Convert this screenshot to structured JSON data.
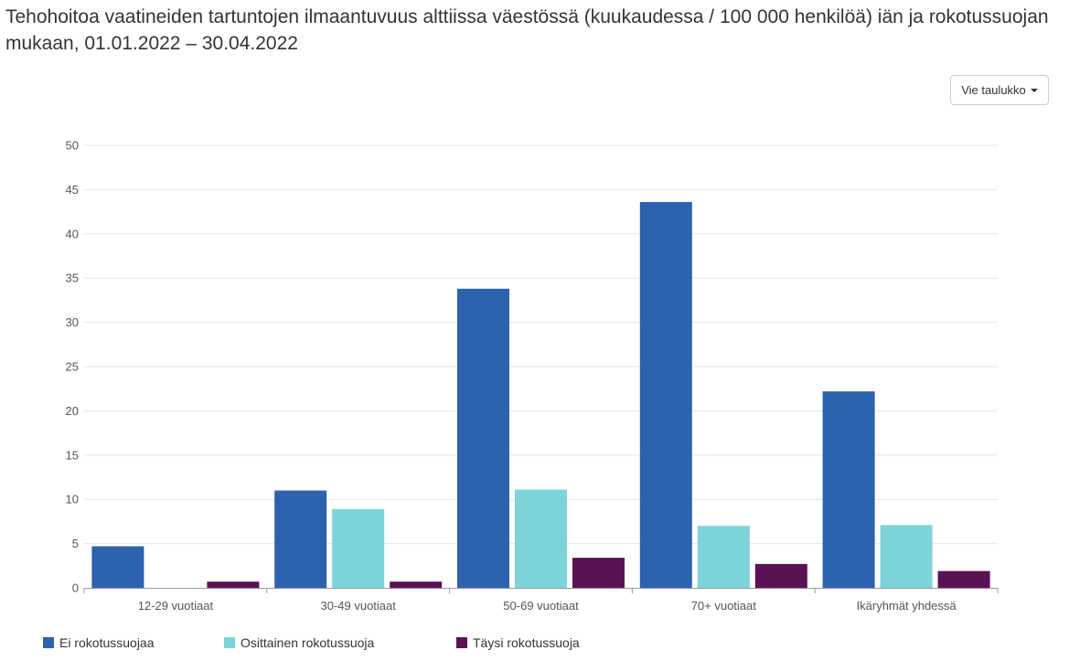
{
  "title": "Tehohoitoa vaatineiden tartuntojen ilmaantuvuus alttiissa väestössä (kuukaudessa / 100 000 henkilöä) iän ja rokotussuojan mukaan, 01.01.2022 – 30.04.2022",
  "export_button": {
    "label": "Vie taulukko",
    "icon": "caret-down-icon"
  },
  "chart_data": {
    "type": "bar",
    "title": "Tehohoitoa vaatineiden tartuntojen ilmaantuvuus alttiissa väestössä (kuukaudessa / 100 000 henkilöä) iän ja rokotussuojan mukaan, 01.01.2022 – 30.04.2022",
    "xlabel": "",
    "ylabel": "",
    "categories": [
      "12-29 vuotiaat",
      "30-49 vuotiaat",
      "50-69 vuotiaat",
      "70+ vuotiaat",
      "Ikäryhmät yhdessä"
    ],
    "series": [
      {
        "name": "Ei rokotussuojaa",
        "color": "#2d62ae",
        "values": [
          4.7,
          11.0,
          33.8,
          43.6,
          22.2
        ]
      },
      {
        "name": "Osittainen rokotussuoja",
        "color": "#7dd3da",
        "values": [
          0,
          8.9,
          11.1,
          7.0,
          7.1
        ]
      },
      {
        "name": "Täysi rokotussuoja",
        "color": "#5a1257",
        "values": [
          0.7,
          0.7,
          3.4,
          2.7,
          1.9
        ]
      }
    ],
    "ylim": [
      0,
      50
    ],
    "yticks": [
      0,
      5,
      10,
      15,
      20,
      25,
      30,
      35,
      40,
      45,
      50
    ],
    "grid": true,
    "legend_position": "bottom-left"
  }
}
